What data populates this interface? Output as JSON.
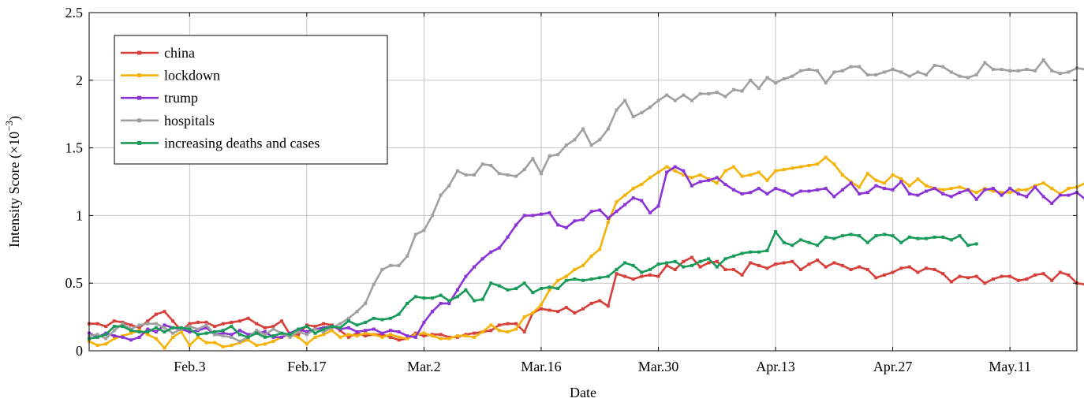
{
  "chart_data": {
    "type": "line",
    "xlabel": "Date",
    "ylabel": "Intensity Score (×10",
    "ylabel_sup": "−3",
    "ylabel_close": ")",
    "x_tick_labels": [
      "Feb.3",
      "Feb.17",
      "Mar.2",
      "Mar.16",
      "Mar.30",
      "Apr.13",
      "Apr.27",
      "May.11"
    ],
    "x_tick_dates": [
      "2020-02-03",
      "2020-02-17",
      "2020-03-02",
      "2020-03-16",
      "2020-03-30",
      "2020-04-13",
      "2020-04-27",
      "2020-05-11"
    ],
    "x_start": "2020-01-22",
    "x_range": [
      "2020-01-22",
      "2020-05-19"
    ],
    "ylim": [
      0,
      2.5
    ],
    "y_ticks": [
      0,
      0.5,
      1,
      1.5,
      2,
      2.5
    ],
    "y_tick_labels": [
      "0",
      "0.5",
      "1",
      "1.5",
      "2",
      "2.5"
    ],
    "grid": true,
    "legend_position": "top-left",
    "series": [
      {
        "name": "china",
        "color": "#d7403a",
        "values": [
          0.2,
          0.2,
          0.18,
          0.22,
          0.21,
          0.19,
          0.17,
          0.22,
          0.27,
          0.29,
          0.22,
          0.15,
          0.2,
          0.21,
          0.21,
          0.18,
          0.2,
          0.21,
          0.22,
          0.24,
          0.2,
          0.17,
          0.18,
          0.22,
          0.12,
          0.12,
          0.19,
          0.18,
          0.2,
          0.19,
          0.15,
          0.1,
          0.13,
          0.11,
          0.12,
          0.12,
          0.1,
          0.08,
          0.09,
          0.13,
          0.11,
          0.12,
          0.12,
          0.1,
          0.1,
          0.12,
          0.13,
          0.14,
          0.15,
          0.19,
          0.2,
          0.2,
          0.14,
          0.28,
          0.31,
          0.3,
          0.29,
          0.32,
          0.28,
          0.31,
          0.35,
          0.37,
          0.33,
          0.57,
          0.55,
          0.53,
          0.55,
          0.56,
          0.55,
          0.63,
          0.6,
          0.66,
          0.69,
          0.62,
          0.65,
          0.66,
          0.6,
          0.6,
          0.56,
          0.65,
          0.63,
          0.61,
          0.64,
          0.65,
          0.66,
          0.6,
          0.64,
          0.67,
          0.62,
          0.65,
          0.63,
          0.6,
          0.62,
          0.6,
          0.54,
          0.56,
          0.58,
          0.61,
          0.62,
          0.58,
          0.61,
          0.6,
          0.57,
          0.51,
          0.55,
          0.54,
          0.55,
          0.5,
          0.53,
          0.55,
          0.55,
          0.52,
          0.53,
          0.56,
          0.57,
          0.52,
          0.58,
          0.56,
          0.5,
          0.49,
          0.58,
          0.58,
          0.57
        ]
      },
      {
        "name": "lockdown",
        "color": "#f5b30a",
        "values": [
          0.07,
          0.04,
          0.05,
          0.09,
          0.11,
          0.13,
          0.15,
          0.12,
          0.09,
          0.02,
          0.1,
          0.14,
          0.04,
          0.1,
          0.06,
          0.06,
          0.03,
          0.04,
          0.06,
          0.08,
          0.04,
          0.05,
          0.07,
          0.1,
          0.12,
          0.1,
          0.05,
          0.1,
          0.12,
          0.15,
          0.1,
          0.12,
          0.11,
          0.13,
          0.12,
          0.1,
          0.12,
          0.1,
          0.09,
          0.12,
          0.13,
          0.11,
          0.09,
          0.09,
          0.11,
          0.11,
          0.1,
          0.14,
          0.19,
          0.15,
          0.14,
          0.16,
          0.25,
          0.28,
          0.34,
          0.45,
          0.52,
          0.55,
          0.6,
          0.63,
          0.7,
          0.75,
          0.95,
          1.1,
          1.15,
          1.2,
          1.23,
          1.28,
          1.32,
          1.36,
          1.33,
          1.3,
          1.28,
          1.3,
          1.27,
          1.24,
          1.33,
          1.36,
          1.29,
          1.3,
          1.32,
          1.26,
          1.33,
          1.34,
          1.35,
          1.36,
          1.37,
          1.38,
          1.43,
          1.38,
          1.3,
          1.25,
          1.21,
          1.31,
          1.26,
          1.24,
          1.3,
          1.27,
          1.22,
          1.27,
          1.22,
          1.2,
          1.19,
          1.2,
          1.21,
          1.19,
          1.17,
          1.2,
          1.18,
          1.17,
          1.17,
          1.19,
          1.19,
          1.22,
          1.24,
          1.2,
          1.16,
          1.2,
          1.21,
          1.24,
          1.17,
          1.22,
          1.19
        ]
      },
      {
        "name": "trump",
        "color": "#8b33d6",
        "values": [
          0.13,
          0.1,
          0.13,
          0.11,
          0.1,
          0.08,
          0.1,
          0.16,
          0.14,
          0.19,
          0.17,
          0.16,
          0.14,
          0.15,
          0.17,
          0.12,
          0.13,
          0.12,
          0.15,
          0.12,
          0.13,
          0.14,
          0.1,
          0.1,
          0.13,
          0.16,
          0.14,
          0.16,
          0.17,
          0.18,
          0.16,
          0.17,
          0.14,
          0.15,
          0.16,
          0.13,
          0.15,
          0.14,
          0.11,
          0.1,
          0.21,
          0.29,
          0.35,
          0.35,
          0.45,
          0.55,
          0.62,
          0.68,
          0.73,
          0.76,
          0.84,
          0.93,
          1.0,
          1.0,
          1.01,
          1.02,
          0.93,
          0.91,
          0.96,
          0.97,
          1.03,
          1.04,
          0.98,
          1.03,
          1.08,
          1.13,
          1.11,
          1.02,
          1.07,
          1.32,
          1.36,
          1.33,
          1.22,
          1.25,
          1.26,
          1.28,
          1.23,
          1.19,
          1.16,
          1.17,
          1.2,
          1.16,
          1.2,
          1.18,
          1.15,
          1.18,
          1.18,
          1.19,
          1.2,
          1.14,
          1.19,
          1.24,
          1.16,
          1.17,
          1.22,
          1.2,
          1.19,
          1.25,
          1.16,
          1.15,
          1.18,
          1.2,
          1.16,
          1.14,
          1.17,
          1.19,
          1.12,
          1.19,
          1.2,
          1.15,
          1.2,
          1.16,
          1.14,
          1.21,
          1.14,
          1.09,
          1.15,
          1.15,
          1.17,
          1.12,
          1.11,
          1.13,
          1.16
        ]
      },
      {
        "name": "hospitals",
        "color": "#a0a0a0",
        "values": [
          0.11,
          0.12,
          0.09,
          0.15,
          0.2,
          0.16,
          0.19,
          0.2,
          0.2,
          0.17,
          0.13,
          0.16,
          0.18,
          0.16,
          0.19,
          0.12,
          0.11,
          0.1,
          0.07,
          0.1,
          0.15,
          0.12,
          0.16,
          0.13,
          0.1,
          0.14,
          0.12,
          0.16,
          0.14,
          0.17,
          0.2,
          0.24,
          0.29,
          0.35,
          0.49,
          0.6,
          0.63,
          0.63,
          0.7,
          0.86,
          0.89,
          1.0,
          1.15,
          1.22,
          1.33,
          1.3,
          1.3,
          1.38,
          1.37,
          1.31,
          1.3,
          1.29,
          1.34,
          1.42,
          1.31,
          1.44,
          1.45,
          1.52,
          1.56,
          1.64,
          1.52,
          1.56,
          1.64,
          1.78,
          1.85,
          1.73,
          1.76,
          1.8,
          1.85,
          1.89,
          1.85,
          1.89,
          1.85,
          1.9,
          1.9,
          1.91,
          1.88,
          1.93,
          1.92,
          2.0,
          1.94,
          2.02,
          1.98,
          2.01,
          2.03,
          2.07,
          2.08,
          2.07,
          1.98,
          2.06,
          2.07,
          2.1,
          2.1,
          2.04,
          2.04,
          2.06,
          2.08,
          2.06,
          2.03,
          2.06,
          2.04,
          2.11,
          2.1,
          2.06,
          2.03,
          2.02,
          2.04,
          2.13,
          2.08,
          2.08,
          2.07,
          2.07,
          2.08,
          2.07,
          2.15,
          2.07,
          2.05,
          2.06,
          2.09,
          2.08,
          2.15,
          2.07,
          2.05
        ]
      },
      {
        "name": "increasing deaths and cases",
        "color": "#189a58",
        "values": [
          0.09,
          0.1,
          0.12,
          0.18,
          0.18,
          0.15,
          0.14,
          0.14,
          0.17,
          0.14,
          0.17,
          0.17,
          0.16,
          0.12,
          0.13,
          0.14,
          0.15,
          0.18,
          0.12,
          0.1,
          0.13,
          0.1,
          0.11,
          0.13,
          0.12,
          0.16,
          0.18,
          0.13,
          0.16,
          0.18,
          0.17,
          0.22,
          0.19,
          0.21,
          0.24,
          0.23,
          0.24,
          0.27,
          0.35,
          0.4,
          0.39,
          0.39,
          0.41,
          0.37,
          0.4,
          0.45,
          0.37,
          0.38,
          0.5,
          0.48,
          0.45,
          0.46,
          0.5,
          0.43,
          0.46,
          0.47,
          0.46,
          0.52,
          0.53,
          0.52,
          0.53,
          0.54,
          0.55,
          0.6,
          0.65,
          0.63,
          0.58,
          0.6,
          0.64,
          0.65,
          0.66,
          0.62,
          0.63,
          0.66,
          0.68,
          0.62,
          0.68,
          0.7,
          0.72,
          0.73,
          0.73,
          0.74,
          0.88,
          0.8,
          0.78,
          0.82,
          0.8,
          0.78,
          0.84,
          0.83,
          0.85,
          0.86,
          0.85,
          0.8,
          0.85,
          0.86,
          0.85,
          0.8,
          0.84,
          0.83,
          0.83,
          0.84,
          0.84,
          0.82,
          0.85,
          0.78,
          0.79
        ]
      }
    ]
  }
}
